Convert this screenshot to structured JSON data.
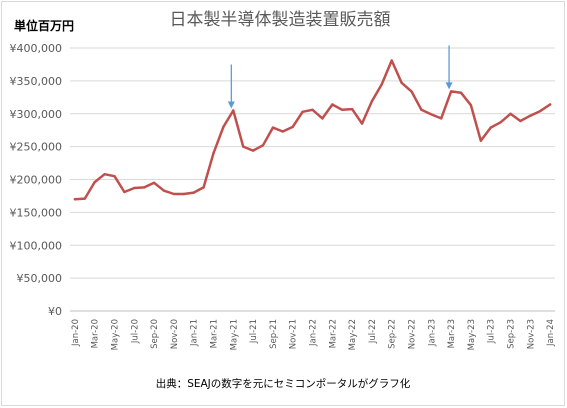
{
  "chart_data": {
    "type": "line",
    "title": "日本製半導体製造装置販売額",
    "unit_label": "単位百万円",
    "source_note": "出典：SEAJの数字を元にセミコンポータルがグラフ化",
    "ylim": [
      0,
      400000
    ],
    "y_ticks": [
      {
        "value": 0,
        "label": "¥0"
      },
      {
        "value": 50000,
        "label": "¥50,000"
      },
      {
        "value": 100000,
        "label": "¥100,000"
      },
      {
        "value": 150000,
        "label": "¥150,000"
      },
      {
        "value": 200000,
        "label": "¥200,000"
      },
      {
        "value": 250000,
        "label": "¥250,000"
      },
      {
        "value": 300000,
        "label": "¥300,000"
      },
      {
        "value": 350000,
        "label": "¥350,000"
      },
      {
        "value": 400000,
        "label": "¥400,000"
      }
    ],
    "x": [
      "Jan-20",
      "Feb-20",
      "Mar-20",
      "Apr-20",
      "May-20",
      "Jun-20",
      "Jul-20",
      "Aug-20",
      "Sep-20",
      "Oct-20",
      "Nov-20",
      "Dec-20",
      "Jan-21",
      "Feb-21",
      "Mar-21",
      "Apr-21",
      "May-21",
      "Jun-21",
      "Jul-21",
      "Aug-21",
      "Sep-21",
      "Oct-21",
      "Nov-21",
      "Dec-21",
      "Jan-22",
      "Feb-22",
      "Mar-22",
      "Apr-22",
      "May-22",
      "Jun-22",
      "Jul-22",
      "Aug-22",
      "Sep-22",
      "Oct-22",
      "Nov-22",
      "Dec-22",
      "Jan-23",
      "Feb-23",
      "Mar-23",
      "Apr-23",
      "May-23",
      "Jun-23",
      "Jul-23",
      "Aug-23",
      "Sep-23",
      "Oct-23",
      "Nov-23",
      "Dec-23",
      "Jan-24"
    ],
    "x_tick_labels": [
      "Jan-20",
      "Mar-20",
      "May-20",
      "Jul-20",
      "Sep-20",
      "Nov-20",
      "Jan-21",
      "Mar-21",
      "May-21",
      "Jul-21",
      "Sep-21",
      "Nov-21",
      "Jan-22",
      "Mar-22",
      "May-22",
      "Jul-22",
      "Sep-22",
      "Nov-22",
      "Jan-23",
      "Mar-23",
      "May-23",
      "Jul-23",
      "Sep-23",
      "Nov-23",
      "Jan-24"
    ],
    "series": [
      {
        "color": "#c0504d",
        "values": [
          170000,
          171000,
          196000,
          208000,
          205000,
          181000,
          187000,
          188000,
          195000,
          183000,
          178000,
          178000,
          180000,
          188000,
          240000,
          280000,
          305000,
          250000,
          244000,
          252000,
          279000,
          273000,
          280000,
          303000,
          306000,
          293000,
          314000,
          306000,
          307000,
          285000,
          319000,
          345000,
          381000,
          347000,
          334000,
          306000,
          299000,
          293000,
          334000,
          332000,
          313000,
          259000,
          279000,
          287000,
          300000,
          289000,
          297000,
          304000,
          314000
        ]
      }
    ],
    "annotations": [
      {
        "type": "arrow",
        "x": "May-21",
        "color": "#5b9bd5"
      },
      {
        "type": "arrow",
        "x": "Mar-23",
        "color": "#5b9bd5"
      }
    ],
    "grid": true,
    "legend": "none"
  }
}
